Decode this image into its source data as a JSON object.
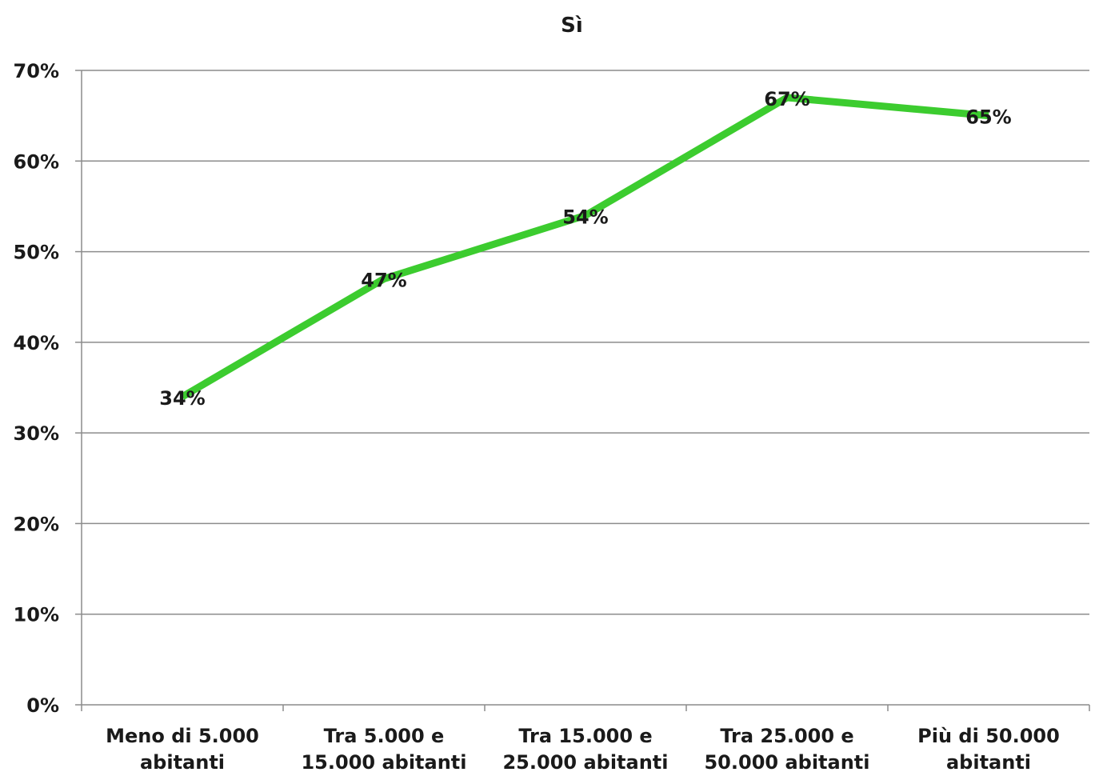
{
  "chart_data": {
    "type": "line",
    "title": "Sì",
    "xlabel": "",
    "ylabel": "",
    "categories": [
      "Meno di 5.000 abitanti",
      "Tra 5.000 e 15.000 abitanti",
      "Tra 15.000 e 25.000 abitanti",
      "Tra 25.000 e 50.000 abitanti",
      "Più di 50.000 abitanti"
    ],
    "category_lines": [
      [
        "Meno di 5.000",
        "abitanti"
      ],
      [
        "Tra 5.000 e",
        "15.000 abitanti"
      ],
      [
        "Tra 15.000 e",
        "25.000 abitanti"
      ],
      [
        "Tra 25.000 e",
        "50.000 abitanti"
      ],
      [
        "Più di 50.000",
        "abitanti"
      ]
    ],
    "series": [
      {
        "values": [
          0.34,
          0.47,
          0.54,
          0.67,
          0.65
        ],
        "labels": [
          "34%",
          "47%",
          "54%",
          "67%",
          "65%"
        ],
        "color": "#3ccc2f"
      }
    ],
    "ylim": [
      0,
      0.7
    ],
    "yticks": [
      0,
      0.1,
      0.2,
      0.3,
      0.4,
      0.5,
      0.6,
      0.7
    ],
    "ytick_labels": [
      "0%",
      "10%",
      "20%",
      "30%",
      "40%",
      "50%",
      "60%",
      "70%"
    ],
    "grid": true,
    "legend": "none",
    "colors": {
      "line": "#3ccc2f",
      "grid": "#8c8c8c",
      "axis": "#8c8c8c",
      "text": "#1a1a1a"
    }
  }
}
